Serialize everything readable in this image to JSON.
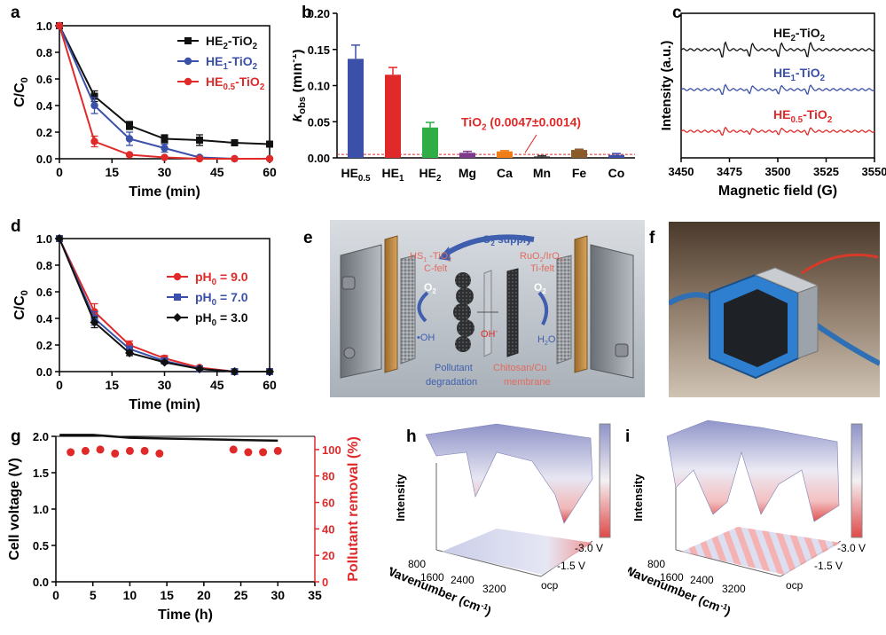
{
  "panel_labels": {
    "a": "a",
    "b": "b",
    "c": "c",
    "d": "d",
    "e": "e",
    "f": "f",
    "g": "g",
    "h": "h",
    "i": "i"
  },
  "colors": {
    "black": "#111111",
    "blue": "#3b50a8",
    "red": "#e02a2a",
    "green": "#2fae46",
    "purple": "#7e3b8e",
    "orange": "#ef7d1a",
    "brown": "#8b5a2b",
    "axis": "#000000"
  },
  "chart_data": [
    {
      "id": "a",
      "type": "line",
      "xlabel": "Time (min)",
      "ylabel": "C/C0",
      "ylabel_main": "C/C",
      "ylabel_sub": "0",
      "xlim": [
        0,
        60
      ],
      "ylim": [
        0,
        1.0
      ],
      "xticks": [
        0,
        15,
        30,
        45,
        60
      ],
      "yticks": [
        0.0,
        0.2,
        0.4,
        0.6,
        0.8,
        1.0
      ],
      "ytick_labels": [
        "0.0",
        "0.2",
        "0.4",
        "0.6",
        "0.8",
        "1.0"
      ],
      "series": [
        {
          "name": "HE2-TiO2",
          "legend_main": "HE",
          "legend_sub": "2",
          "legend_tail": "-TiO",
          "legend_sub2": "2",
          "color": "#111111",
          "marker": "square",
          "x": [
            0,
            10,
            20,
            30,
            40,
            50,
            60
          ],
          "y": [
            1.0,
            0.47,
            0.25,
            0.15,
            0.14,
            0.12,
            0.11
          ],
          "err": [
            0,
            0.04,
            0.03,
            0.03,
            0.04,
            0.01,
            0.01
          ]
        },
        {
          "name": "HE1-TiO2",
          "legend_main": "HE",
          "legend_sub": "1",
          "legend_tail": "-TiO",
          "legend_sub2": "2",
          "color": "#3b50a8",
          "marker": "circle",
          "x": [
            0,
            10,
            20,
            30,
            40,
            50,
            60
          ],
          "y": [
            1.0,
            0.4,
            0.15,
            0.08,
            0.01,
            0.0,
            0.0
          ],
          "err": [
            0,
            0.06,
            0.05,
            0.03,
            0.01,
            0,
            0
          ]
        },
        {
          "name": "HE0.5-TiO2",
          "legend_main": "HE",
          "legend_sub": "0.5",
          "legend_tail": "-TiO",
          "legend_sub2": "2",
          "color": "#e02a2a",
          "marker": "circle",
          "x": [
            0,
            10,
            20,
            30,
            40,
            50,
            60
          ],
          "y": [
            1.0,
            0.13,
            0.03,
            0.01,
            0.0,
            0.0,
            0.0
          ],
          "err": [
            0,
            0.04,
            0.01,
            0,
            0,
            0,
            0
          ]
        }
      ]
    },
    {
      "id": "b",
      "type": "bar",
      "ylabel": "kobs (min-1)",
      "ylabel_k": "k",
      "ylabel_ksub": "obs",
      "ylabel_unit": " (min",
      "ylabel_exp": "-1",
      "ylabel_close": ")",
      "ylim": [
        0,
        0.2
      ],
      "yticks": [
        0.0,
        0.05,
        0.1,
        0.15,
        0.2
      ],
      "ytick_labels": [
        "0.00",
        "0.05",
        "0.10",
        "0.15",
        "0.20"
      ],
      "categories": [
        "HE0.5",
        "HE1",
        "HE2",
        "Mg",
        "Ca",
        "Mn",
        "Fe",
        "Co"
      ],
      "cat_main": [
        "HE",
        "HE",
        "HE",
        "Mg",
        "Ca",
        "Mn",
        "Fe",
        "Co"
      ],
      "cat_sub": [
        "0.5",
        "1",
        "2",
        "",
        "",
        "",
        "",
        ""
      ],
      "values": [
        0.137,
        0.115,
        0.042,
        0.007,
        0.009,
        0.002,
        0.011,
        0.004
      ],
      "errors": [
        0.019,
        0.01,
        0.007,
        0.002,
        0.001,
        0.001,
        0.001,
        0.002
      ],
      "bar_colors": [
        "#3b50a8",
        "#e02a2a",
        "#2fae46",
        "#7e3b8e",
        "#ef7d1a",
        "#333333",
        "#8b5a2b",
        "#3b50a8"
      ],
      "reference_line": {
        "value": 0.0047,
        "label": "TiO2 (0.0047±0.0014)",
        "label_main": "TiO",
        "label_sub": "2",
        "label_tail": " (0.0047±0.0014)"
      }
    },
    {
      "id": "c",
      "type": "line",
      "xlabel": "Magnetic field (G)",
      "ylabel": "Intensity (a.u.)",
      "xlim": [
        3450,
        3550
      ],
      "xticks": [
        3450,
        3475,
        3500,
        3525,
        3550
      ],
      "series": [
        {
          "name": "HE0.5-TiO2",
          "legend_main": "HE",
          "legend_sub": "0.5",
          "legend_tail": "-TiO",
          "legend_sub2": "2",
          "color": "#e02a2a",
          "offset": 2.0
        },
        {
          "name": "HE1-TiO2",
          "legend_main": "HE",
          "legend_sub": "1",
          "legend_tail": "-TiO",
          "legend_sub2": "2",
          "color": "#3b50a8",
          "offset": 1.0
        },
        {
          "name": "HE2-TiO2",
          "legend_main": "HE",
          "legend_sub": "2",
          "legend_tail": "-TiO",
          "legend_sub2": "2",
          "color": "#111111",
          "offset": 0.0
        }
      ],
      "peaks": [
        3472,
        3486,
        3501,
        3516
      ]
    },
    {
      "id": "d",
      "type": "line",
      "xlabel": "Time (min)",
      "ylabel": "C/C0",
      "ylabel_main": "C/C",
      "ylabel_sub": "0",
      "xlim": [
        0,
        60
      ],
      "ylim": [
        0,
        1.0
      ],
      "xticks": [
        0,
        15,
        30,
        45,
        60
      ],
      "yticks": [
        0.0,
        0.2,
        0.4,
        0.6,
        0.8,
        1.0
      ],
      "ytick_labels": [
        "0.0",
        "0.2",
        "0.4",
        "0.6",
        "0.8",
        "1.0"
      ],
      "series": [
        {
          "name": "pH0 = 9.0",
          "legend_main": "pH",
          "legend_sub": "0",
          "legend_tail": " = 9.0",
          "color": "#e02a2a",
          "marker": "circle",
          "x": [
            0,
            10,
            20,
            30,
            40,
            50,
            60
          ],
          "y": [
            1.0,
            0.45,
            0.2,
            0.1,
            0.03,
            0.0,
            0.0
          ],
          "err": [
            0,
            0.06,
            0.03,
            0.02,
            0,
            0,
            0
          ]
        },
        {
          "name": "pH0 = 7.0",
          "legend_main": "pH",
          "legend_sub": "0",
          "legend_tail": " = 7.0",
          "color": "#3b50a8",
          "marker": "square",
          "x": [
            0,
            10,
            20,
            30,
            40,
            50,
            60
          ],
          "y": [
            1.0,
            0.4,
            0.17,
            0.08,
            0.02,
            0.0,
            0.0
          ],
          "err": [
            0,
            0.05,
            0.02,
            0.02,
            0,
            0,
            0
          ]
        },
        {
          "name": "pH0 = 3.0",
          "legend_main": "pH",
          "legend_sub": "0",
          "legend_tail": " = 3.0",
          "color": "#111111",
          "marker": "diamond",
          "x": [
            0,
            10,
            20,
            30,
            40,
            50,
            60
          ],
          "y": [
            1.0,
            0.37,
            0.14,
            0.07,
            0.02,
            0.0,
            0.0
          ],
          "err": [
            0,
            0.04,
            0.02,
            0.01,
            0,
            0,
            0
          ]
        }
      ]
    },
    {
      "id": "g",
      "type": "line",
      "xlabel": "Time (h)",
      "ylabel": "Cell voltage (V)",
      "ylabel2": "Pollutant removal (%)",
      "xlim": [
        0,
        35
      ],
      "ylim": [
        0,
        2.0
      ],
      "ylim2": [
        0,
        110
      ],
      "xticks": [
        0,
        5,
        10,
        15,
        20,
        25,
        30,
        35
      ],
      "yticks": [
        0.0,
        0.5,
        1.0,
        1.5,
        2.0
      ],
      "ytick_labels": [
        "0.0",
        "0.5",
        "1.0",
        "1.5",
        "2.0"
      ],
      "yticks2": [
        0,
        20,
        40,
        60,
        80,
        100
      ],
      "series": [
        {
          "name": "Cell voltage",
          "color": "#111111",
          "x": [
            0.5,
            5,
            10,
            15,
            20,
            25,
            30
          ],
          "y": [
            2.02,
            2.02,
            1.98,
            1.97,
            1.96,
            1.95,
            1.94
          ]
        },
        {
          "name": "Pollutant removal",
          "color": "#e02a2a",
          "axis": "right",
          "x": [
            2,
            4,
            6,
            8,
            10,
            12,
            14,
            24,
            26,
            28,
            30
          ],
          "y": [
            98,
            99,
            100,
            97,
            99,
            99,
            97,
            100,
            98,
            98,
            99
          ]
        }
      ]
    }
  ],
  "panel_e": {
    "o2_supply_main": "O",
    "o2_supply_sub": "2",
    "o2_supply_tail": " supply",
    "cathode_l1_main": "HS",
    "cathode_l1_sub": "1",
    "cathode_l1_tail": " -TiO",
    "cathode_l1_sub2": "2",
    "cathode_line2": "C-felt",
    "anode_l1_main": "RuO",
    "anode_l1_sub": "2",
    "anode_l1_mid": "/IrO",
    "anode_l1_sub2": "2",
    "anode_line2": "Ti-felt",
    "o2_left_main": "O",
    "o2_left_sub": "2",
    "o2_right_main": "O",
    "o2_right_sub": "2",
    "oh_radical": "•OH",
    "oh_minus": "OH",
    "oh_minus_sup": "-",
    "h2o_main": "H",
    "h2o_sub": "2",
    "h2o_tail": "O",
    "pollutant_1": "Pollutant",
    "pollutant_2": "degradation",
    "membrane_1": "Chitosan/Cu",
    "membrane_2": "membrane"
  },
  "panel_h": {
    "ylabel": "Intensity",
    "xlabel_main": "Wavenumber (cm",
    "xlabel_sup": "-1",
    "xlabel_close": ")",
    "wn_ticks": [
      "800",
      "1600",
      "2400",
      "3200"
    ],
    "v_ticks": [
      "-3.0 V",
      "-1.5 V",
      "ocp"
    ]
  },
  "panel_i": {
    "ylabel": "Intensity",
    "xlabel_main": "Wavenumber (cm",
    "xlabel_sup": "-1",
    "xlabel_close": ")",
    "wn_ticks": [
      "800",
      "1600",
      "2400",
      "3200"
    ],
    "v_ticks": [
      "-3.0 V",
      "-1.5 V",
      "ocp"
    ]
  }
}
